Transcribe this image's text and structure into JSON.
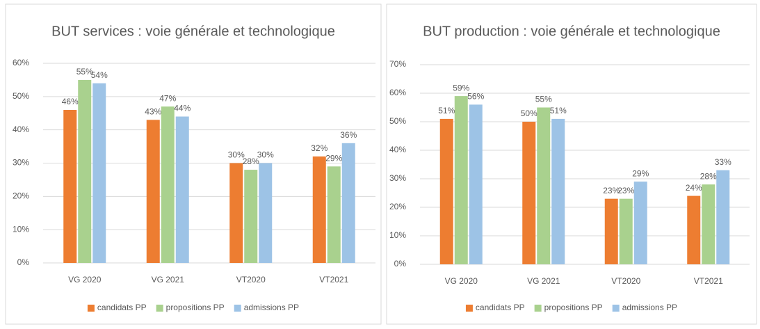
{
  "chart_data": [
    {
      "type": "bar",
      "title": "BUT services : voie générale et technologique",
      "categories": [
        "VG 2020",
        "VG 2021",
        "VT2020",
        "VT2021"
      ],
      "series": [
        {
          "name": "candidats PP",
          "color": "#ed7d31",
          "values": [
            46,
            43,
            30,
            32
          ],
          "value_labels": [
            "46%",
            "43%",
            "30%",
            "32%"
          ]
        },
        {
          "name": "propositions PP",
          "color": "#a9d18e",
          "values": [
            55,
            47,
            28,
            29
          ],
          "value_labels": [
            "55%",
            "47%",
            "28%",
            "29%"
          ]
        },
        {
          "name": "admissions PP",
          "color": "#9dc3e6",
          "values": [
            54,
            44,
            30,
            36
          ],
          "value_labels": [
            "54%",
            "44%",
            "30%",
            "36%"
          ]
        }
      ],
      "ylim": [
        0,
        60
      ],
      "yticks": [
        {
          "value": 0,
          "label": "0%"
        },
        {
          "value": 10,
          "label": "10%"
        },
        {
          "value": 20,
          "label": "20%"
        },
        {
          "value": 30,
          "label": "30%"
        },
        {
          "value": 40,
          "label": "40%"
        },
        {
          "value": 50,
          "label": "50%"
        },
        {
          "value": 60,
          "label": "60%"
        }
      ],
      "grid": true,
      "legend": "bottom"
    },
    {
      "type": "bar",
      "title": "BUT production : voie générale et technologique",
      "categories": [
        "VG 2020",
        "VG 2021",
        "VT2020",
        "VT2021"
      ],
      "series": [
        {
          "name": "candidats PP",
          "color": "#ed7d31",
          "values": [
            51,
            50,
            23,
            24
          ],
          "value_labels": [
            "51%",
            "50%",
            "23%",
            "24%"
          ]
        },
        {
          "name": "propositions PP",
          "color": "#a9d18e",
          "values": [
            59,
            55,
            23,
            28
          ],
          "value_labels": [
            "59%",
            "55%",
            "23%",
            "28%"
          ]
        },
        {
          "name": "admissions PP",
          "color": "#9dc3e6",
          "values": [
            56,
            51,
            29,
            33
          ],
          "value_labels": [
            "56%",
            "51%",
            "29%",
            "33%"
          ]
        }
      ],
      "ylim": [
        0,
        70
      ],
      "yticks": [
        {
          "value": 0,
          "label": "0%"
        },
        {
          "value": 10,
          "label": "10%"
        },
        {
          "value": 20,
          "label": "20%"
        },
        {
          "value": 30,
          "label": "30%"
        },
        {
          "value": 40,
          "label": "40%"
        },
        {
          "value": 50,
          "label": "50%"
        },
        {
          "value": 60,
          "label": "60%"
        },
        {
          "value": 70,
          "label": "70%"
        }
      ],
      "grid": true,
      "legend": "bottom"
    }
  ]
}
